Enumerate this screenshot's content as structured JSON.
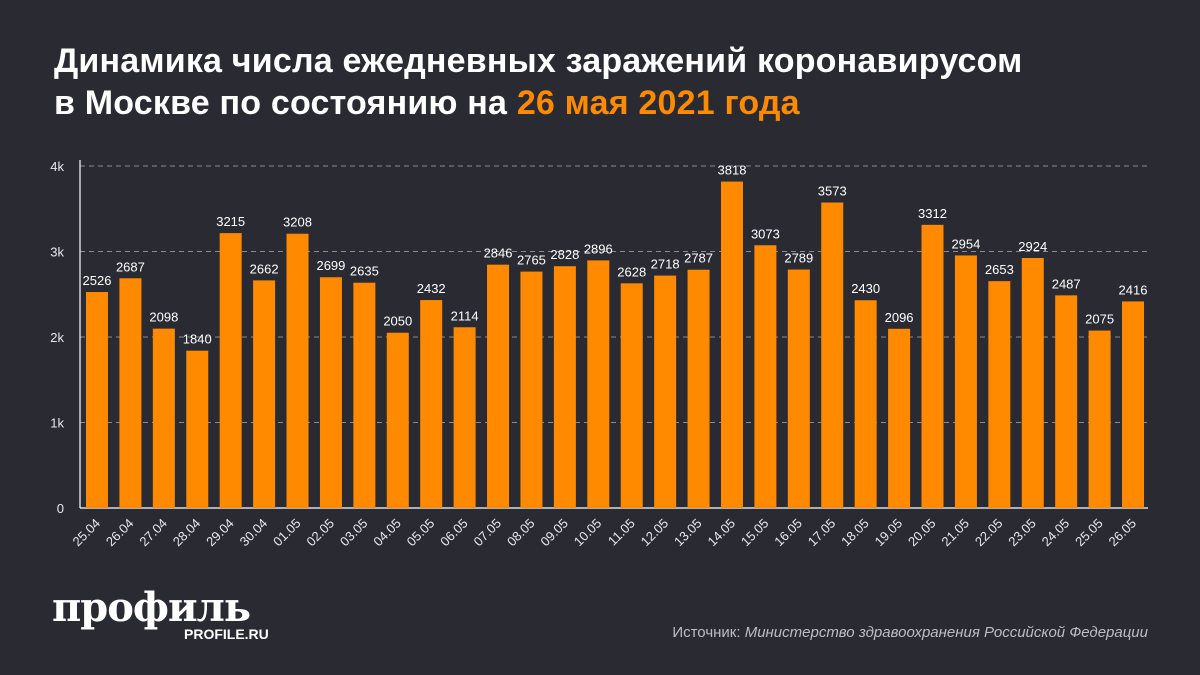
{
  "title": {
    "line1": "Динамика числа ежедневных заражений коронавирусом",
    "line2_prefix": "в Москве по состоянию на",
    "line2_highlight": "26 мая 2021 года"
  },
  "chart_data": {
    "type": "bar",
    "title": "Динамика числа ежедневных заражений коронавирусом в Москве по состоянию на 26 мая 2021 года",
    "categories": [
      "25.04",
      "26.04",
      "27.04",
      "28.04",
      "29.04",
      "30.04",
      "01.05",
      "02.05",
      "03.05",
      "04.05",
      "05.05",
      "06.05",
      "07.05",
      "08.05",
      "09.05",
      "10.05",
      "11.05",
      "12.05",
      "13.05",
      "14.05",
      "15.05",
      "16.05",
      "17.05",
      "18.05",
      "19.05",
      "20.05",
      "21.05",
      "22.05",
      "23.05",
      "24.05",
      "25.05",
      "26.05"
    ],
    "values": [
      2526,
      2687,
      2098,
      1840,
      3215,
      2662,
      3208,
      2699,
      2635,
      2050,
      2432,
      2114,
      2846,
      2765,
      2828,
      2896,
      2628,
      2718,
      2787,
      3818,
      3073,
      2789,
      3573,
      2430,
      2096,
      3312,
      2954,
      2653,
      2924,
      2487,
      2075,
      2416
    ],
    "ylim": [
      0,
      4000
    ],
    "yticks": [
      0,
      1000,
      2000,
      3000,
      4000
    ],
    "ytick_labels": [
      "0",
      "1k",
      "2k",
      "3k",
      "4k"
    ],
    "grid": true,
    "bar_color": "#ff8a00",
    "xlabel": "",
    "ylabel": ""
  },
  "logo": {
    "main": "профиль",
    "sub": "PROFILE.RU"
  },
  "source": {
    "label": "Источник:",
    "text": "Министерство здравоохранения Российской Федерации"
  },
  "colors": {
    "background": "#2a2a33",
    "accent": "#ff8a00"
  }
}
